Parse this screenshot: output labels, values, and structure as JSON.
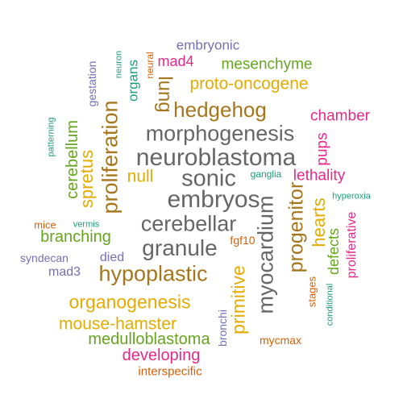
{
  "palette": {
    "teal": "#1b9e77",
    "orange": "#d95f02",
    "purple": "#7570b3",
    "magenta": "#e7298a",
    "green": "#66a61e",
    "gold": "#e6ab02",
    "brown": "#a6761d",
    "gray": "#666666"
  },
  "words": [
    {
      "text": "embryonic",
      "color": "purple"
    },
    {
      "text": "neuron",
      "color": "teal"
    },
    {
      "text": "gestation",
      "color": "purple"
    },
    {
      "text": "organs",
      "color": "teal"
    },
    {
      "text": "neural",
      "color": "orange"
    },
    {
      "text": "mad4",
      "color": "magenta"
    },
    {
      "text": "mesenchyme",
      "color": "green"
    },
    {
      "text": "lung",
      "color": "brown"
    },
    {
      "text": "proto-oncogene",
      "color": "gold"
    },
    {
      "text": "patterning",
      "color": "teal"
    },
    {
      "text": "hedgehog",
      "color": "brown"
    },
    {
      "text": "chamber",
      "color": "magenta"
    },
    {
      "text": "cerebellum",
      "color": "green"
    },
    {
      "text": "proliferation",
      "color": "brown"
    },
    {
      "text": "morphogenesis",
      "color": "gray"
    },
    {
      "text": "pups",
      "color": "magenta"
    },
    {
      "text": "spretus",
      "color": "gold"
    },
    {
      "text": "neuroblastoma",
      "color": "gray"
    },
    {
      "text": "null",
      "color": "gold"
    },
    {
      "text": "sonic",
      "color": "gray"
    },
    {
      "text": "ganglia",
      "color": "teal"
    },
    {
      "text": "lethality",
      "color": "magenta"
    },
    {
      "text": "embryos",
      "color": "gray"
    },
    {
      "text": "myocardium",
      "color": "gray"
    },
    {
      "text": "hyperoxia",
      "color": "teal"
    },
    {
      "text": "progenitor",
      "color": "brown"
    },
    {
      "text": "hearts",
      "color": "gold"
    },
    {
      "text": "cerebellar",
      "color": "gray"
    },
    {
      "text": "mice",
      "color": "orange"
    },
    {
      "text": "vermis",
      "color": "teal"
    },
    {
      "text": "proliferative",
      "color": "magenta"
    },
    {
      "text": "branching",
      "color": "green"
    },
    {
      "text": "defects",
      "color": "green"
    },
    {
      "text": "granule",
      "color": "gray"
    },
    {
      "text": "fgf10",
      "color": "orange"
    },
    {
      "text": "syndecan",
      "color": "purple"
    },
    {
      "text": "died",
      "color": "purple"
    },
    {
      "text": "primitive",
      "color": "gold"
    },
    {
      "text": "mad3",
      "color": "purple"
    },
    {
      "text": "hypoplastic",
      "color": "brown"
    },
    {
      "text": "stages",
      "color": "orange"
    },
    {
      "text": "conditional",
      "color": "teal"
    },
    {
      "text": "organogenesis",
      "color": "gold"
    },
    {
      "text": "bronchi",
      "color": "purple"
    },
    {
      "text": "mouse-hamster",
      "color": "gold"
    },
    {
      "text": "medulloblastoma",
      "color": "green"
    },
    {
      "text": "mycmax",
      "color": "orange"
    },
    {
      "text": "developing",
      "color": "magenta"
    },
    {
      "text": "interspecific",
      "color": "orange"
    }
  ]
}
